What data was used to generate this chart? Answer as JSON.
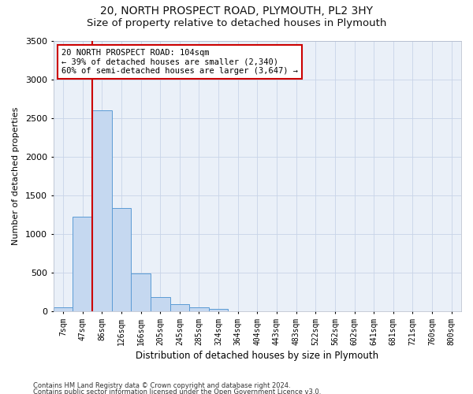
{
  "title": "20, NORTH PROSPECT ROAD, PLYMOUTH, PL2 3HY",
  "subtitle": "Size of property relative to detached houses in Plymouth",
  "xlabel": "Distribution of detached houses by size in Plymouth",
  "ylabel": "Number of detached properties",
  "categories": [
    "7sqm",
    "47sqm",
    "86sqm",
    "126sqm",
    "166sqm",
    "205sqm",
    "245sqm",
    "285sqm",
    "324sqm",
    "364sqm",
    "404sqm",
    "443sqm",
    "483sqm",
    "522sqm",
    "562sqm",
    "602sqm",
    "641sqm",
    "681sqm",
    "721sqm",
    "760sqm",
    "800sqm"
  ],
  "values": [
    50,
    1220,
    2600,
    1330,
    490,
    180,
    90,
    50,
    30,
    0,
    0,
    0,
    0,
    0,
    0,
    0,
    0,
    0,
    0,
    0,
    0
  ],
  "bar_color": "#c5d8f0",
  "bar_edge_color": "#5b9bd5",
  "vline_x_index": 2,
  "vline_color": "#cc0000",
  "annotation_text": "20 NORTH PROSPECT ROAD: 104sqm\n← 39% of detached houses are smaller (2,340)\n60% of semi-detached houses are larger (3,647) →",
  "annotation_box_color": "#ffffff",
  "annotation_box_edge": "#cc0000",
  "ylim": [
    0,
    3500
  ],
  "footnote1": "Contains HM Land Registry data © Crown copyright and database right 2024.",
  "footnote2": "Contains public sector information licensed under the Open Government Licence v3.0.",
  "bg_color": "#ffffff",
  "axes_bg_color": "#eaf0f8",
  "grid_color": "#c8d4e8",
  "title_fontsize": 10,
  "subtitle_fontsize": 9.5,
  "xlabel_fontsize": 8.5,
  "ylabel_fontsize": 8,
  "tick_fontsize": 7,
  "footnote_fontsize": 6,
  "annotation_fontsize": 7.5
}
